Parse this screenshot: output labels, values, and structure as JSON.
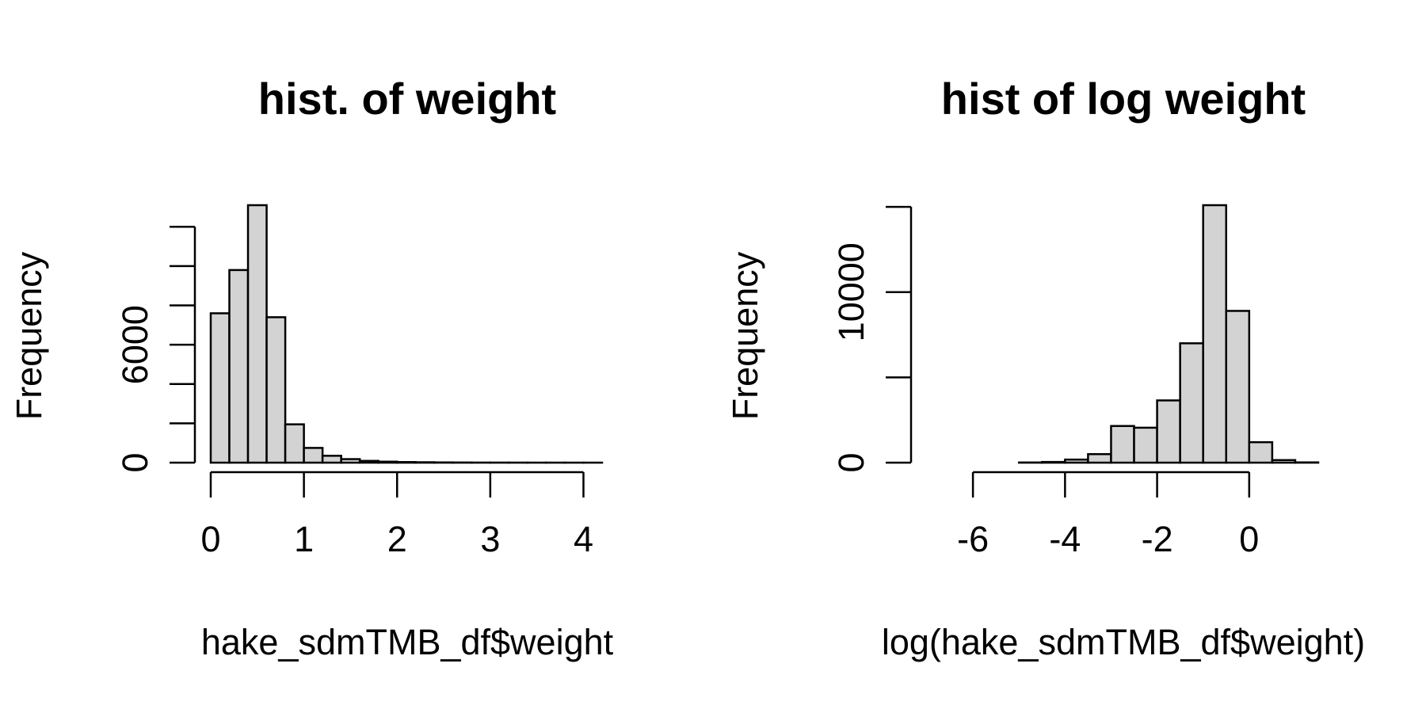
{
  "colors": {
    "background": "#ffffff",
    "bar_fill": "#d3d3d3",
    "bar_stroke": "#000000",
    "axis": "#000000"
  },
  "chart_data": [
    {
      "type": "bar",
      "subtype": "histogram",
      "title": "hist. of weight",
      "xlabel": "hake_sdmTMB_df$weight",
      "ylabel": "Frequency",
      "bin_width": 0.2,
      "bins": [
        {
          "x0": 0.0,
          "x1": 0.2,
          "count": 7600
        },
        {
          "x0": 0.2,
          "x1": 0.4,
          "count": 9800
        },
        {
          "x0": 0.4,
          "x1": 0.6,
          "count": 13100
        },
        {
          "x0": 0.6,
          "x1": 0.8,
          "count": 7400
        },
        {
          "x0": 0.8,
          "x1": 1.0,
          "count": 1950
        },
        {
          "x0": 1.0,
          "x1": 1.2,
          "count": 750
        },
        {
          "x0": 1.2,
          "x1": 1.4,
          "count": 350
        },
        {
          "x0": 1.4,
          "x1": 1.6,
          "count": 180
        },
        {
          "x0": 1.6,
          "x1": 1.8,
          "count": 90
        },
        {
          "x0": 1.8,
          "x1": 2.0,
          "count": 50
        },
        {
          "x0": 2.0,
          "x1": 2.2,
          "count": 30
        },
        {
          "x0": 2.2,
          "x1": 2.4,
          "count": 20
        },
        {
          "x0": 2.4,
          "x1": 2.6,
          "count": 12
        },
        {
          "x0": 2.6,
          "x1": 2.8,
          "count": 8
        },
        {
          "x0": 2.8,
          "x1": 3.0,
          "count": 5
        },
        {
          "x0": 3.0,
          "x1": 3.2,
          "count": 4
        },
        {
          "x0": 3.2,
          "x1": 3.4,
          "count": 3
        },
        {
          "x0": 3.4,
          "x1": 3.6,
          "count": 2
        },
        {
          "x0": 3.6,
          "x1": 3.8,
          "count": 2
        },
        {
          "x0": 3.8,
          "x1": 4.0,
          "count": 1
        },
        {
          "x0": 4.0,
          "x1": 4.2,
          "count": 1
        }
      ],
      "xlim": [
        0,
        4.2
      ],
      "ylim": [
        0,
        13100
      ],
      "x_ticks": [
        0,
        1,
        2,
        3,
        4
      ],
      "x_tick_labels": [
        "0",
        "1",
        "2",
        "3",
        "4"
      ],
      "y_ticks": [
        0,
        2000,
        4000,
        6000,
        8000,
        10000,
        12000
      ],
      "y_tick_labels": [
        "0",
        "",
        "",
        "6000",
        "",
        "",
        ""
      ],
      "grid": false,
      "legend": "none"
    },
    {
      "type": "bar",
      "subtype": "histogram",
      "title": "hist of log weight",
      "xlabel": "log(hake_sdmTMB_df$weight)",
      "ylabel": "Frequency",
      "bin_width": 0.5,
      "bins": [
        {
          "x0": -7.0,
          "x1": -6.5,
          "count": 0
        },
        {
          "x0": -6.5,
          "x1": -6.0,
          "count": 0
        },
        {
          "x0": -6.0,
          "x1": -5.5,
          "count": 0
        },
        {
          "x0": -5.5,
          "x1": -5.0,
          "count": 0
        },
        {
          "x0": -5.0,
          "x1": -4.5,
          "count": 10
        },
        {
          "x0": -4.5,
          "x1": -4.0,
          "count": 40
        },
        {
          "x0": -4.0,
          "x1": -3.5,
          "count": 180
        },
        {
          "x0": -3.5,
          "x1": -3.0,
          "count": 500
        },
        {
          "x0": -3.0,
          "x1": -2.5,
          "count": 2150
        },
        {
          "x0": -2.5,
          "x1": -2.0,
          "count": 2050
        },
        {
          "x0": -2.0,
          "x1": -1.5,
          "count": 3650
        },
        {
          "x0": -1.5,
          "x1": -1.0,
          "count": 7000
        },
        {
          "x0": -1.0,
          "x1": -0.5,
          "count": 15100
        },
        {
          "x0": -0.5,
          "x1": 0.0,
          "count": 8900
        },
        {
          "x0": 0.0,
          "x1": 0.5,
          "count": 1200
        },
        {
          "x0": 0.5,
          "x1": 1.0,
          "count": 150
        },
        {
          "x0": 1.0,
          "x1": 1.5,
          "count": 15
        }
      ],
      "xlim": [
        -7,
        1.5
      ],
      "ylim": [
        0,
        15100
      ],
      "x_ticks": [
        -6,
        -4,
        -2,
        0
      ],
      "x_tick_labels": [
        "-6",
        "-4",
        "-2",
        "0"
      ],
      "y_ticks": [
        0,
        5000,
        10000,
        15000
      ],
      "y_tick_labels": [
        "0",
        "",
        "10000",
        ""
      ],
      "grid": false,
      "legend": "none"
    }
  ]
}
